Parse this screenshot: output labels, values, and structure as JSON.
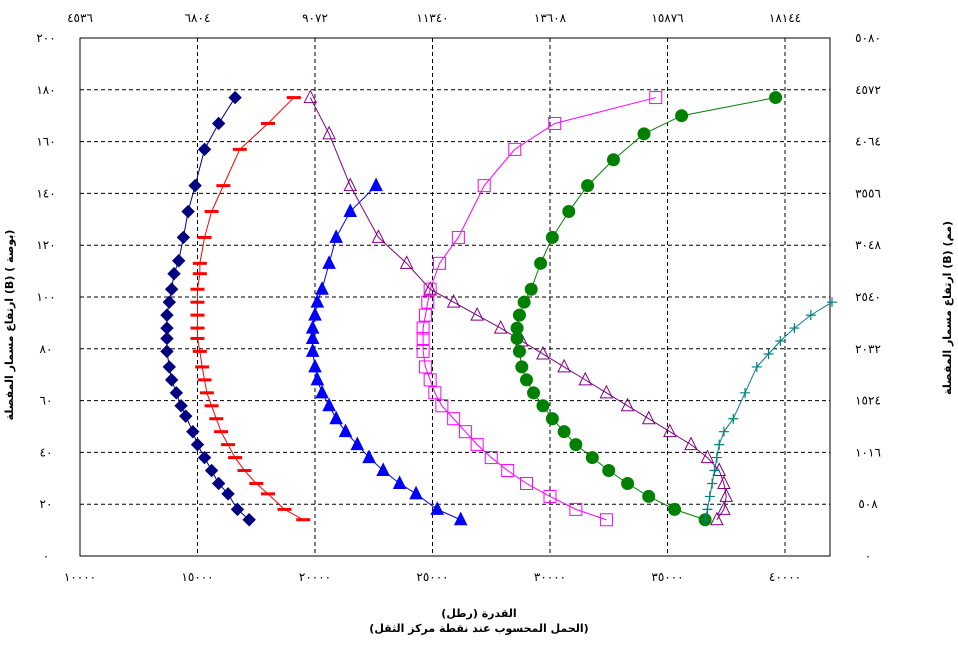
{
  "chart_data": {
    "type": "line",
    "xlabel": "القدرة (رطل)",
    "xlabel_sub": "(الحمل المحسوب عند نقطة مركز الثقل)",
    "ylabel_left": "ارتفاع مسمار المفصلة (B) ( بوصة)",
    "ylabel_right": "ارتفاع مسمار المفصلة (B) (مم)",
    "xlim": [
      10000,
      42000
    ],
    "ylim": [
      0,
      200
    ],
    "grid": true,
    "x_ticks_bottom": [
      "١٠٠٠٠",
      "١٥٠٠٠",
      "٢٠٠٠٠",
      "٢٥٠٠٠",
      "٣٠٠٠٠",
      "٣٥٠٠٠",
      "٤٠٠٠٠"
    ],
    "x_ticks_top": [
      "٤٥٣٦",
      "٦٨٠٤",
      "٩٠٧٢",
      "١١٣٤٠",
      "١٣٦٠٨",
      "١٥٨٧٦",
      "١٨١٤٤"
    ],
    "y_ticks_left": [
      "٠",
      "٢٠",
      "٤٠",
      "٦٠",
      "٨٠",
      "١٠٠",
      "١٢٠",
      "١٤٠",
      "١٦٠",
      "١٨٠",
      "٢٠٠"
    ],
    "y_ticks_right": [
      "٠",
      "٥٠٨",
      "١٠١٦",
      "١٥٢٤",
      "٢٠٣٢",
      "٢٥٤٠",
      "٣٠٤٨",
      "٣٥٥٦",
      "٤٠٦٤",
      "٤٥٧٢",
      "٥٠٨٠"
    ],
    "series": [
      {
        "marker": "diamond",
        "color": "#000080",
        "line_color": "#000080",
        "x": [
          17200,
          16700,
          16300,
          15900,
          15600,
          15300,
          15000,
          14800,
          14500,
          14300,
          14100,
          13900,
          13800,
          13700,
          13700,
          13700,
          13700,
          13800,
          13900,
          14000,
          14200,
          14400,
          14600,
          14900,
          15300,
          15900,
          16600
        ],
        "y": [
          14,
          18,
          24,
          28,
          33,
          38,
          43,
          48,
          54,
          58,
          63,
          68,
          73,
          79,
          84,
          88,
          93,
          98,
          103,
          109,
          114,
          123,
          133,
          143,
          157,
          167,
          177
        ]
      },
      {
        "marker": "dash",
        "color": "#ff0000",
        "line_color": "#ff0000",
        "x": [
          19500,
          18700,
          18000,
          17500,
          17000,
          16600,
          16300,
          16000,
          15800,
          15600,
          15400,
          15300,
          15200,
          15100,
          15000,
          15000,
          15000,
          15000,
          15000,
          15100,
          15100,
          15300,
          15600,
          16100,
          16800,
          18000,
          19100
        ],
        "y": [
          14,
          18,
          24,
          28,
          33,
          38,
          43,
          48,
          53,
          58,
          63,
          68,
          73,
          79,
          84,
          88,
          93,
          98,
          103,
          109,
          113,
          123,
          133,
          143,
          157,
          167,
          177
        ]
      },
      {
        "marker": "triangle",
        "color": "#0000ff",
        "line_color": "#0000ff",
        "x": [
          26200,
          25200,
          24300,
          23600,
          22900,
          22300,
          21800,
          21300,
          20900,
          20600,
          20300,
          20100,
          20000,
          19900,
          19900,
          19900,
          20000,
          20100,
          20300,
          20600,
          20900,
          21500,
          22600
        ],
        "y": [
          14,
          18,
          24,
          28,
          33,
          38,
          43,
          48,
          53,
          58,
          63,
          68,
          73,
          79,
          84,
          88,
          93,
          98,
          103,
          113,
          123,
          133,
          143
        ]
      },
      {
        "marker": "triangle-open",
        "color": "#800080",
        "line_color": "#800080",
        "x": [
          37100,
          37400,
          37500,
          37400,
          37200,
          36700,
          36000,
          35100,
          34200,
          33300,
          32400,
          31500,
          30600,
          29700,
          28800,
          27900,
          26900,
          25900,
          24900,
          23900,
          22700,
          21500,
          20600,
          19800
        ],
        "y": [
          14,
          18,
          23,
          28,
          33,
          38,
          43,
          48,
          53,
          58,
          63,
          68,
          73,
          78,
          83,
          88,
          93,
          98,
          103,
          113,
          123,
          143,
          163,
          177
        ]
      },
      {
        "marker": "square-open",
        "color": "#ff00ff",
        "line_color": "#ff00ff",
        "x": [
          32400,
          31100,
          30000,
          29000,
          28200,
          27500,
          26900,
          26400,
          25900,
          25400,
          25100,
          24900,
          24700,
          24600,
          24600,
          24600,
          24700,
          24800,
          24900,
          25300,
          26100,
          27200,
          28500,
          30200,
          34500
        ],
        "y": [
          14,
          18,
          23,
          28,
          33,
          38,
          43,
          48,
          53,
          58,
          63,
          68,
          73,
          79,
          84,
          88,
          93,
          98,
          103,
          113,
          123,
          143,
          157,
          167,
          177
        ]
      },
      {
        "marker": "circle",
        "color": "#008000",
        "line_color": "#008000",
        "x": [
          36600,
          35300,
          34200,
          33300,
          32500,
          31800,
          31100,
          30600,
          30100,
          29700,
          29300,
          29000,
          28800,
          28700,
          28600,
          28600,
          28700,
          28900,
          29200,
          29600,
          30100,
          30800,
          31600,
          32700,
          34000,
          35600,
          39600
        ],
        "y": [
          14,
          18,
          23,
          28,
          33,
          38,
          43,
          48,
          53,
          58,
          63,
          68,
          73,
          79,
          84,
          88,
          93,
          98,
          103,
          113,
          123,
          133,
          143,
          153,
          163,
          170,
          177
        ]
      },
      {
        "marker": "plus",
        "color": "#008080",
        "line_color": "#008080",
        "x": [
          36600,
          36700,
          36800,
          36900,
          37000,
          37100,
          37200,
          37400,
          37800,
          38300,
          38800,
          39300,
          39800,
          40400,
          41100,
          42000
        ],
        "y": [
          14,
          18,
          23,
          28,
          33,
          38,
          43,
          48,
          53,
          63,
          73,
          78,
          83,
          88,
          93,
          98
        ]
      }
    ]
  }
}
